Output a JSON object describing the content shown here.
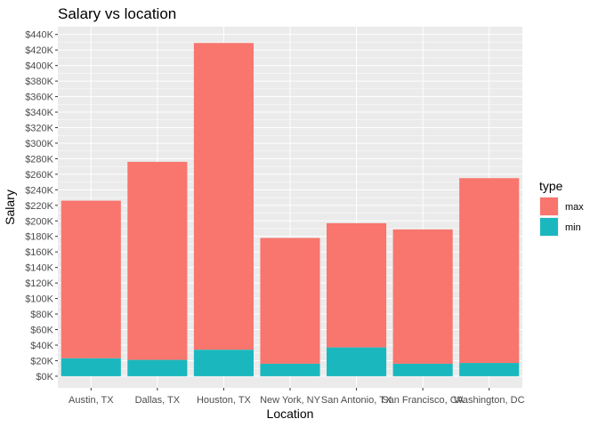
{
  "chart_data": {
    "type": "bar",
    "stacked": true,
    "title": "Salary vs location",
    "xlabel": "Location",
    "ylabel": "Salary",
    "categories": [
      "Austin, TX",
      "Dallas, TX",
      "Houston, TX",
      "New York, NY",
      "San Antonio, TX",
      "San Francisco, CA",
      "Washington, DC"
    ],
    "series": [
      {
        "name": "min",
        "values": [
          23000,
          21000,
          34000,
          16000,
          37000,
          16000,
          17000
        ]
      },
      {
        "name": "max",
        "values": [
          203000,
          255000,
          395000,
          162000,
          160000,
          173000,
          238000
        ]
      }
    ],
    "ylim": [
      -15000,
      450000
    ],
    "yticks": [
      0,
      20000,
      40000,
      60000,
      80000,
      100000,
      120000,
      140000,
      160000,
      180000,
      200000,
      220000,
      240000,
      260000,
      280000,
      300000,
      320000,
      340000,
      360000,
      380000,
      400000,
      420000,
      440000
    ],
    "ytick_labels": [
      "$0K",
      "$20K",
      "$40K",
      "$60K",
      "$80K",
      "$100K",
      "$120K",
      "$140K",
      "$160K",
      "$180K",
      "$200K",
      "$220K",
      "$240K",
      "$260K",
      "$280K",
      "$300K",
      "$320K",
      "$340K",
      "$360K",
      "$380K",
      "$400K",
      "$420K",
      "$440K"
    ],
    "grid": true,
    "legend": {
      "title": "type",
      "position": "right",
      "entries": [
        {
          "name": "max",
          "color": "#F8766D"
        },
        {
          "name": "min",
          "color": "#00BFC4"
        }
      ]
    },
    "colors": {
      "max": "#F8766D",
      "min": "#1AB8BE",
      "panel": "#EBEBEB",
      "grid": "#FFFFFF"
    }
  }
}
